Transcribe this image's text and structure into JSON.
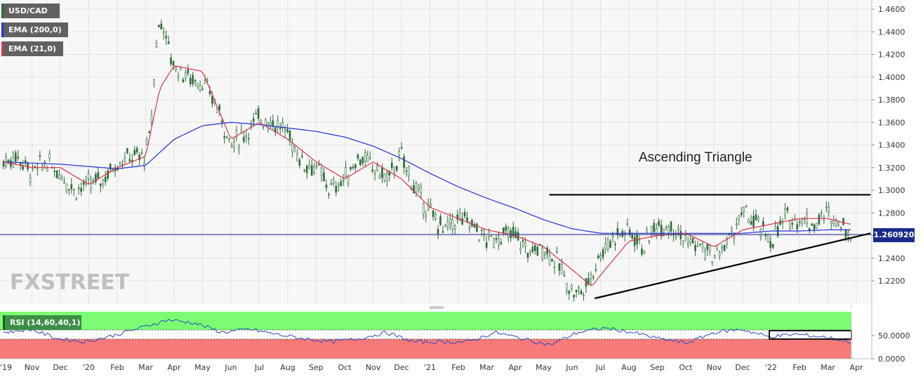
{
  "legend": {
    "symbol": "USD/CAD",
    "ema200": "EMA (200,0)",
    "ema21": "EMA (21,0)",
    "rsi": "RSI (14,60,40,1)"
  },
  "annotation": "Ascending Triangle",
  "watermark": "FXSTREET",
  "current_price_label": "1.260920",
  "colors": {
    "ema200": "#2330d8",
    "ema21": "#e0334d",
    "candle": "#2b6b35",
    "rsi_line": "#2a47c8",
    "rsi_upper_zone": "#7cfc72",
    "rsi_lower_zone": "#f77a78",
    "price_line": "#1b2a8a"
  },
  "chart_data": [
    {
      "type": "line",
      "subtype": "candlestick",
      "title": "",
      "symbol": "USD/CAD",
      "timeframe_ticks": [
        "'19",
        "Nov",
        "Dec",
        "'20",
        "Feb",
        "Mar",
        "Apr",
        "May",
        "Jun",
        "Jul",
        "Aug",
        "Sep",
        "Oct",
        "Nov",
        "Dec",
        "'21",
        "Feb",
        "Mar",
        "Apr",
        "May",
        "Jun",
        "Jul",
        "Aug",
        "Sep",
        "Oct",
        "Nov",
        "Dec",
        "'22",
        "Feb",
        "Mar",
        "Apr"
      ],
      "y_ticks": [
        "1.4600",
        "1.4400",
        "1.4200",
        "1.4000",
        "1.3800",
        "1.3600",
        "1.3400",
        "1.3200",
        "1.3000",
        "1.2800",
        "1.2600",
        "1.2400",
        "1.2200"
      ],
      "ylim": [
        1.2,
        1.47
      ],
      "current_price": 1.26092,
      "grid": true,
      "close_path": {
        "months": [
          0,
          0.5,
          1,
          1.5,
          2,
          2.5,
          3,
          3.5,
          4,
          4.5,
          5,
          5.2,
          5.4,
          5.6,
          5.8,
          6,
          6.5,
          7,
          7.5,
          8,
          8.5,
          9,
          9.5,
          10,
          10.5,
          11,
          11.5,
          12,
          12.5,
          13,
          13.5,
          14,
          14.5,
          15,
          15.5,
          16,
          16.5,
          17,
          17.5,
          18,
          18.5,
          19,
          19.5,
          20,
          20.3,
          20.5,
          21,
          21.5,
          22,
          22.5,
          23,
          23.5,
          24,
          24.5,
          25,
          25.5,
          26,
          26.5,
          27,
          27.5,
          28,
          28.5,
          29,
          29.5,
          29.8
        ],
        "close": [
          1.325,
          1.33,
          1.315,
          1.325,
          1.315,
          1.3,
          1.305,
          1.31,
          1.325,
          1.33,
          1.33,
          1.36,
          1.44,
          1.45,
          1.425,
          1.41,
          1.4,
          1.395,
          1.375,
          1.34,
          1.35,
          1.365,
          1.36,
          1.35,
          1.325,
          1.32,
          1.3,
          1.31,
          1.33,
          1.32,
          1.31,
          1.33,
          1.3,
          1.28,
          1.265,
          1.275,
          1.27,
          1.255,
          1.26,
          1.26,
          1.245,
          1.25,
          1.235,
          1.21,
          1.21,
          1.215,
          1.245,
          1.26,
          1.265,
          1.25,
          1.27,
          1.27,
          1.255,
          1.25,
          1.24,
          1.255,
          1.28,
          1.27,
          1.255,
          1.275,
          1.275,
          1.27,
          1.28,
          1.27,
          1.261
        ]
      },
      "series": [
        {
          "name": "EMA (200,0)",
          "months": [
            0,
            2,
            4,
            5,
            6,
            7,
            8,
            9,
            10,
            11,
            12,
            13,
            14,
            15,
            16,
            17,
            18,
            19,
            20,
            21,
            22,
            23,
            24,
            25,
            26,
            27,
            28,
            29,
            29.8
          ],
          "values": [
            1.325,
            1.323,
            1.319,
            1.322,
            1.345,
            1.357,
            1.36,
            1.358,
            1.355,
            1.352,
            1.347,
            1.339,
            1.328,
            1.315,
            1.303,
            1.293,
            1.284,
            1.274,
            1.266,
            1.262,
            1.262,
            1.262,
            1.262,
            1.262,
            1.262,
            1.264,
            1.264,
            1.265,
            1.265
          ]
        },
        {
          "name": "EMA (21,0)",
          "months": [
            0,
            1,
            2,
            3,
            4,
            5,
            5.5,
            6,
            7,
            8,
            9,
            10,
            11,
            12,
            13,
            14,
            15,
            16,
            17,
            18,
            19,
            20,
            20.7,
            21,
            22,
            23,
            24,
            25,
            26,
            27,
            28,
            29,
            29.8
          ],
          "values": [
            1.325,
            1.32,
            1.32,
            1.305,
            1.32,
            1.33,
            1.39,
            1.41,
            1.405,
            1.345,
            1.36,
            1.345,
            1.325,
            1.31,
            1.325,
            1.31,
            1.285,
            1.275,
            1.265,
            1.26,
            1.25,
            1.23,
            1.215,
            1.225,
            1.255,
            1.26,
            1.262,
            1.25,
            1.265,
            1.27,
            1.275,
            1.275,
            1.27
          ]
        }
      ],
      "annotations": [
        {
          "text": "Ascending Triangle",
          "type": "resistance",
          "value": 1.296,
          "from_month": 19.2,
          "to_month": 30.5
        },
        {
          "type": "support",
          "from": {
            "month": 20.8,
            "value": 1.2045
          },
          "to": {
            "month": 30.5,
            "value": 1.262
          }
        }
      ]
    },
    {
      "type": "line",
      "title": "RSI (14,60,40,1)",
      "y_ticks": [
        "50.0000",
        "0.0000"
      ],
      "ylim": [
        0,
        100
      ],
      "upper_band": 60,
      "lower_band": 40,
      "values_sample": [
        55,
        60,
        45,
        40,
        50,
        62,
        75,
        70,
        55,
        60,
        52,
        45,
        40,
        45,
        55,
        40,
        40,
        40,
        55,
        45,
        35,
        55,
        62,
        55,
        45,
        38,
        55,
        60,
        48,
        52,
        48,
        40
      ]
    }
  ]
}
